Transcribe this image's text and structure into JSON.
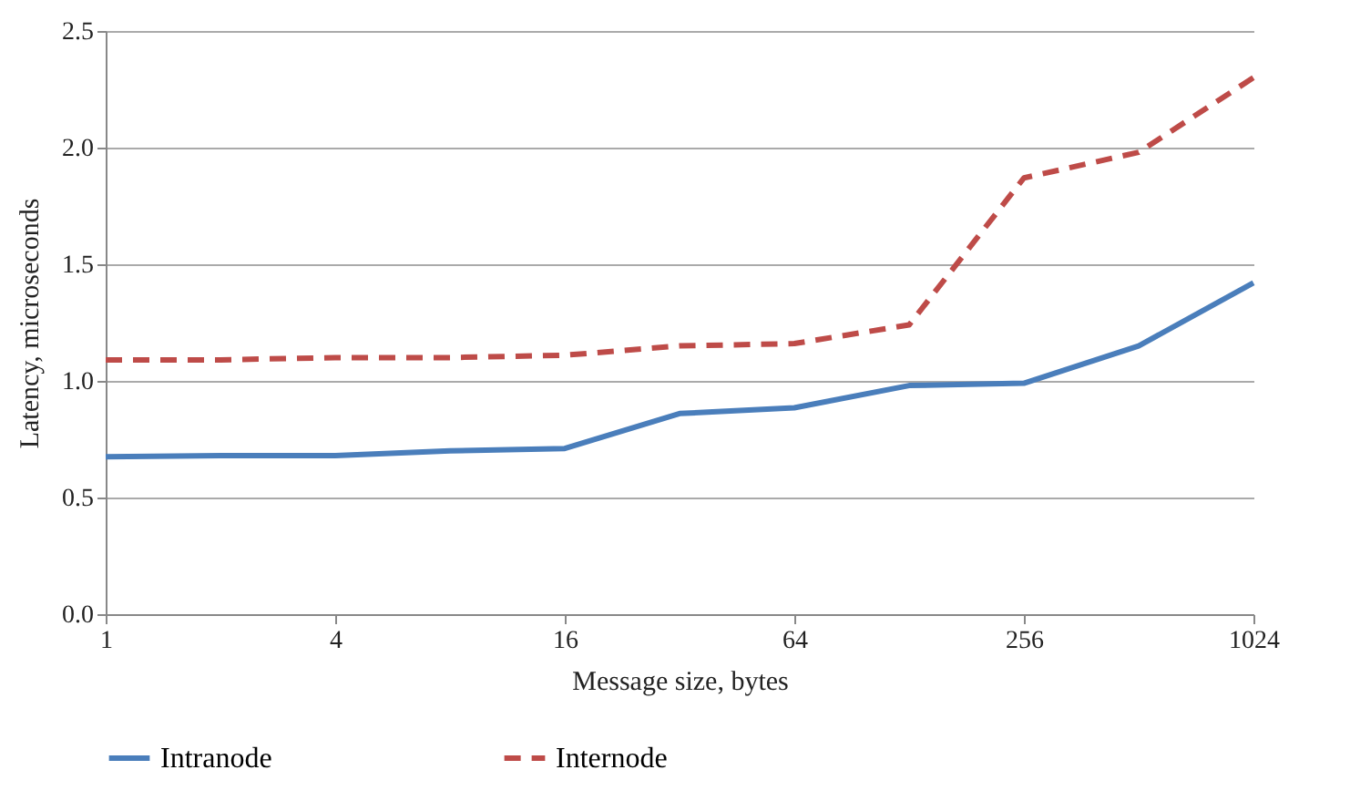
{
  "chart_data": {
    "type": "line",
    "xlabel": "Message size, bytes",
    "ylabel": "Latency, microseconds",
    "log": "x",
    "x": [
      1,
      2,
      4,
      8,
      16,
      32,
      64,
      128,
      256,
      512,
      1024
    ],
    "xlim": [
      1,
      1024
    ],
    "xticks": [
      1,
      4,
      16,
      64,
      256,
      1024
    ],
    "ylim": [
      0,
      2.5
    ],
    "yticks": [
      {
        "value": 0,
        "label": "0.0"
      },
      0.5,
      {
        "value": 1,
        "label": "1.0"
      },
      1.5,
      {
        "value": 2,
        "label": "2.0"
      },
      2.5
    ],
    "grid": "y",
    "legend": "bottom",
    "marker": "none",
    "series": [
      {
        "name": "Intranode",
        "color": "#4a7ebb",
        "line_style": "solid",
        "values": [
          0.675,
          0.68,
          0.68,
          0.7,
          0.71,
          0.86,
          0.885,
          0.98,
          0.99,
          1.15,
          1.42
        ]
      },
      {
        "name": "Internode",
        "color": "#be4b48",
        "line_style": "dashed",
        "values": [
          1.09,
          1.09,
          1.1,
          1.1,
          1.11,
          1.15,
          1.16,
          1.24,
          1.87,
          1.98,
          2.3
        ]
      }
    ]
  }
}
